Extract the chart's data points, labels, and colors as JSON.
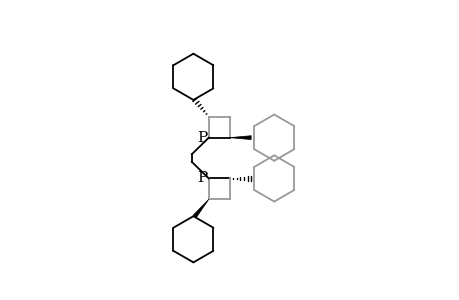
{
  "bg_color": "#ffffff",
  "line_color": "#000000",
  "gray_color": "#999999",
  "P_label": "P",
  "font_size_P": 11,
  "fig_width": 4.6,
  "fig_height": 3.0,
  "dpi": 100
}
